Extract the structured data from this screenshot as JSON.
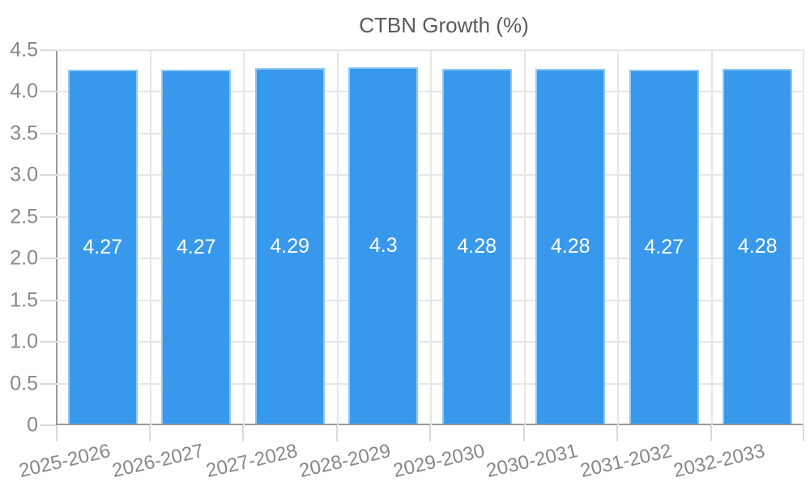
{
  "chart_data": {
    "type": "bar",
    "title": "",
    "xlabel": "",
    "ylabel": "",
    "legend_position": "top",
    "grid": true,
    "categories": [
      "2025-2026",
      "2026-2027",
      "2027-2028",
      "2028-2029",
      "2029-2030",
      "2030-2031",
      "2031-2032",
      "2032-2033"
    ],
    "series": [
      {
        "name": "CTBN Growth (%)",
        "values": [
          4.27,
          4.27,
          4.29,
          4.3,
          4.28,
          4.28,
          4.27,
          4.28
        ]
      }
    ],
    "value_labels": [
      "4.27",
      "4.27",
      "4.29",
      "4.3",
      "4.28",
      "4.28",
      "4.27",
      "4.28"
    ],
    "ylim": [
      0,
      4.5
    ],
    "y_ticks": [
      "0",
      "0.5",
      "1.0",
      "1.5",
      "2.0",
      "2.5",
      "3.0",
      "3.5",
      "4.0",
      "4.5"
    ],
    "colors": {
      "bar_fill": "#3899ec",
      "bar_border": "#92c8f3",
      "grid": "#e6e6e6",
      "axis": "#9a9a9a",
      "tick": "#d9d9d9",
      "tick_text": "#888888",
      "legend_text": "#595959",
      "value_label_text": "#ffffff"
    }
  }
}
